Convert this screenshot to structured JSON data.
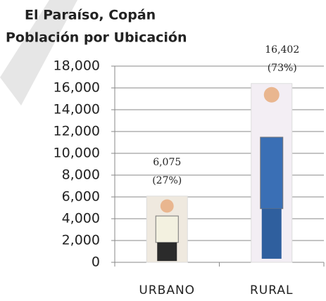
{
  "chart_data": {
    "type": "bar",
    "title": "El Paraíso, Copán",
    "subtitle": "Población por Ubicación",
    "categories": [
      "URBANO",
      "RURAL"
    ],
    "values": [
      6075,
      16402
    ],
    "value_labels": [
      "6,075",
      "16,402"
    ],
    "shares": [
      27,
      73
    ],
    "share_labels": [
      "(27%)",
      "(73%)"
    ],
    "ylim": [
      0,
      18000
    ],
    "yticks": [
      {
        "value": 0,
        "label": "0"
      },
      {
        "value": 2000,
        "label": "2,000"
      },
      {
        "value": 4000,
        "label": "4,000"
      },
      {
        "value": 6000,
        "label": "6,000"
      },
      {
        "value": 8000,
        "label": "8,000"
      },
      {
        "value": 10000,
        "label": "10,000"
      },
      {
        "value": 12000,
        "label": "12,000"
      },
      {
        "value": 14000,
        "label": "14,000"
      },
      {
        "value": 16000,
        "label": "16,000"
      },
      {
        "value": 18000,
        "label": "18,000"
      }
    ],
    "grid": true
  }
}
